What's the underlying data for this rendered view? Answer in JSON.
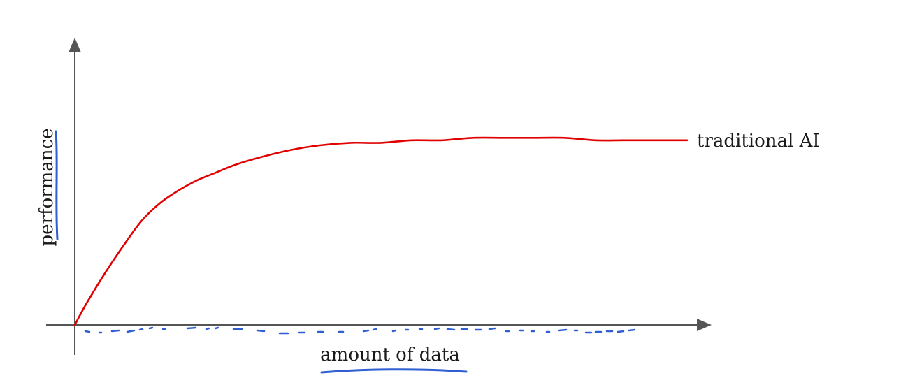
{
  "chart_data": {
    "type": "line",
    "title": "",
    "xlabel": "amount of data",
    "ylabel": "performance",
    "xlim": [
      0,
      100
    ],
    "ylim": [
      0,
      100
    ],
    "grid": false,
    "ticks": false,
    "series": [
      {
        "name": "traditional AI",
        "color": "#e00000",
        "x": [
          0,
          2,
          5,
          8,
          11,
          14,
          17,
          20,
          23,
          26,
          30,
          35,
          40,
          45,
          50,
          55,
          60,
          65,
          70,
          75,
          80,
          85,
          90,
          95,
          100
        ],
        "y": [
          0,
          9,
          21,
          32,
          42,
          49,
          54,
          58,
          61,
          64,
          67,
          70,
          72,
          73,
          73,
          74,
          74,
          75,
          75,
          75,
          75,
          74,
          74,
          74,
          74
        ]
      }
    ],
    "annotations": {
      "axis_label_underline_color": "#2f5fd0",
      "x_axis_markings": "blue dotted/dashed strokes along the x-axis"
    }
  }
}
